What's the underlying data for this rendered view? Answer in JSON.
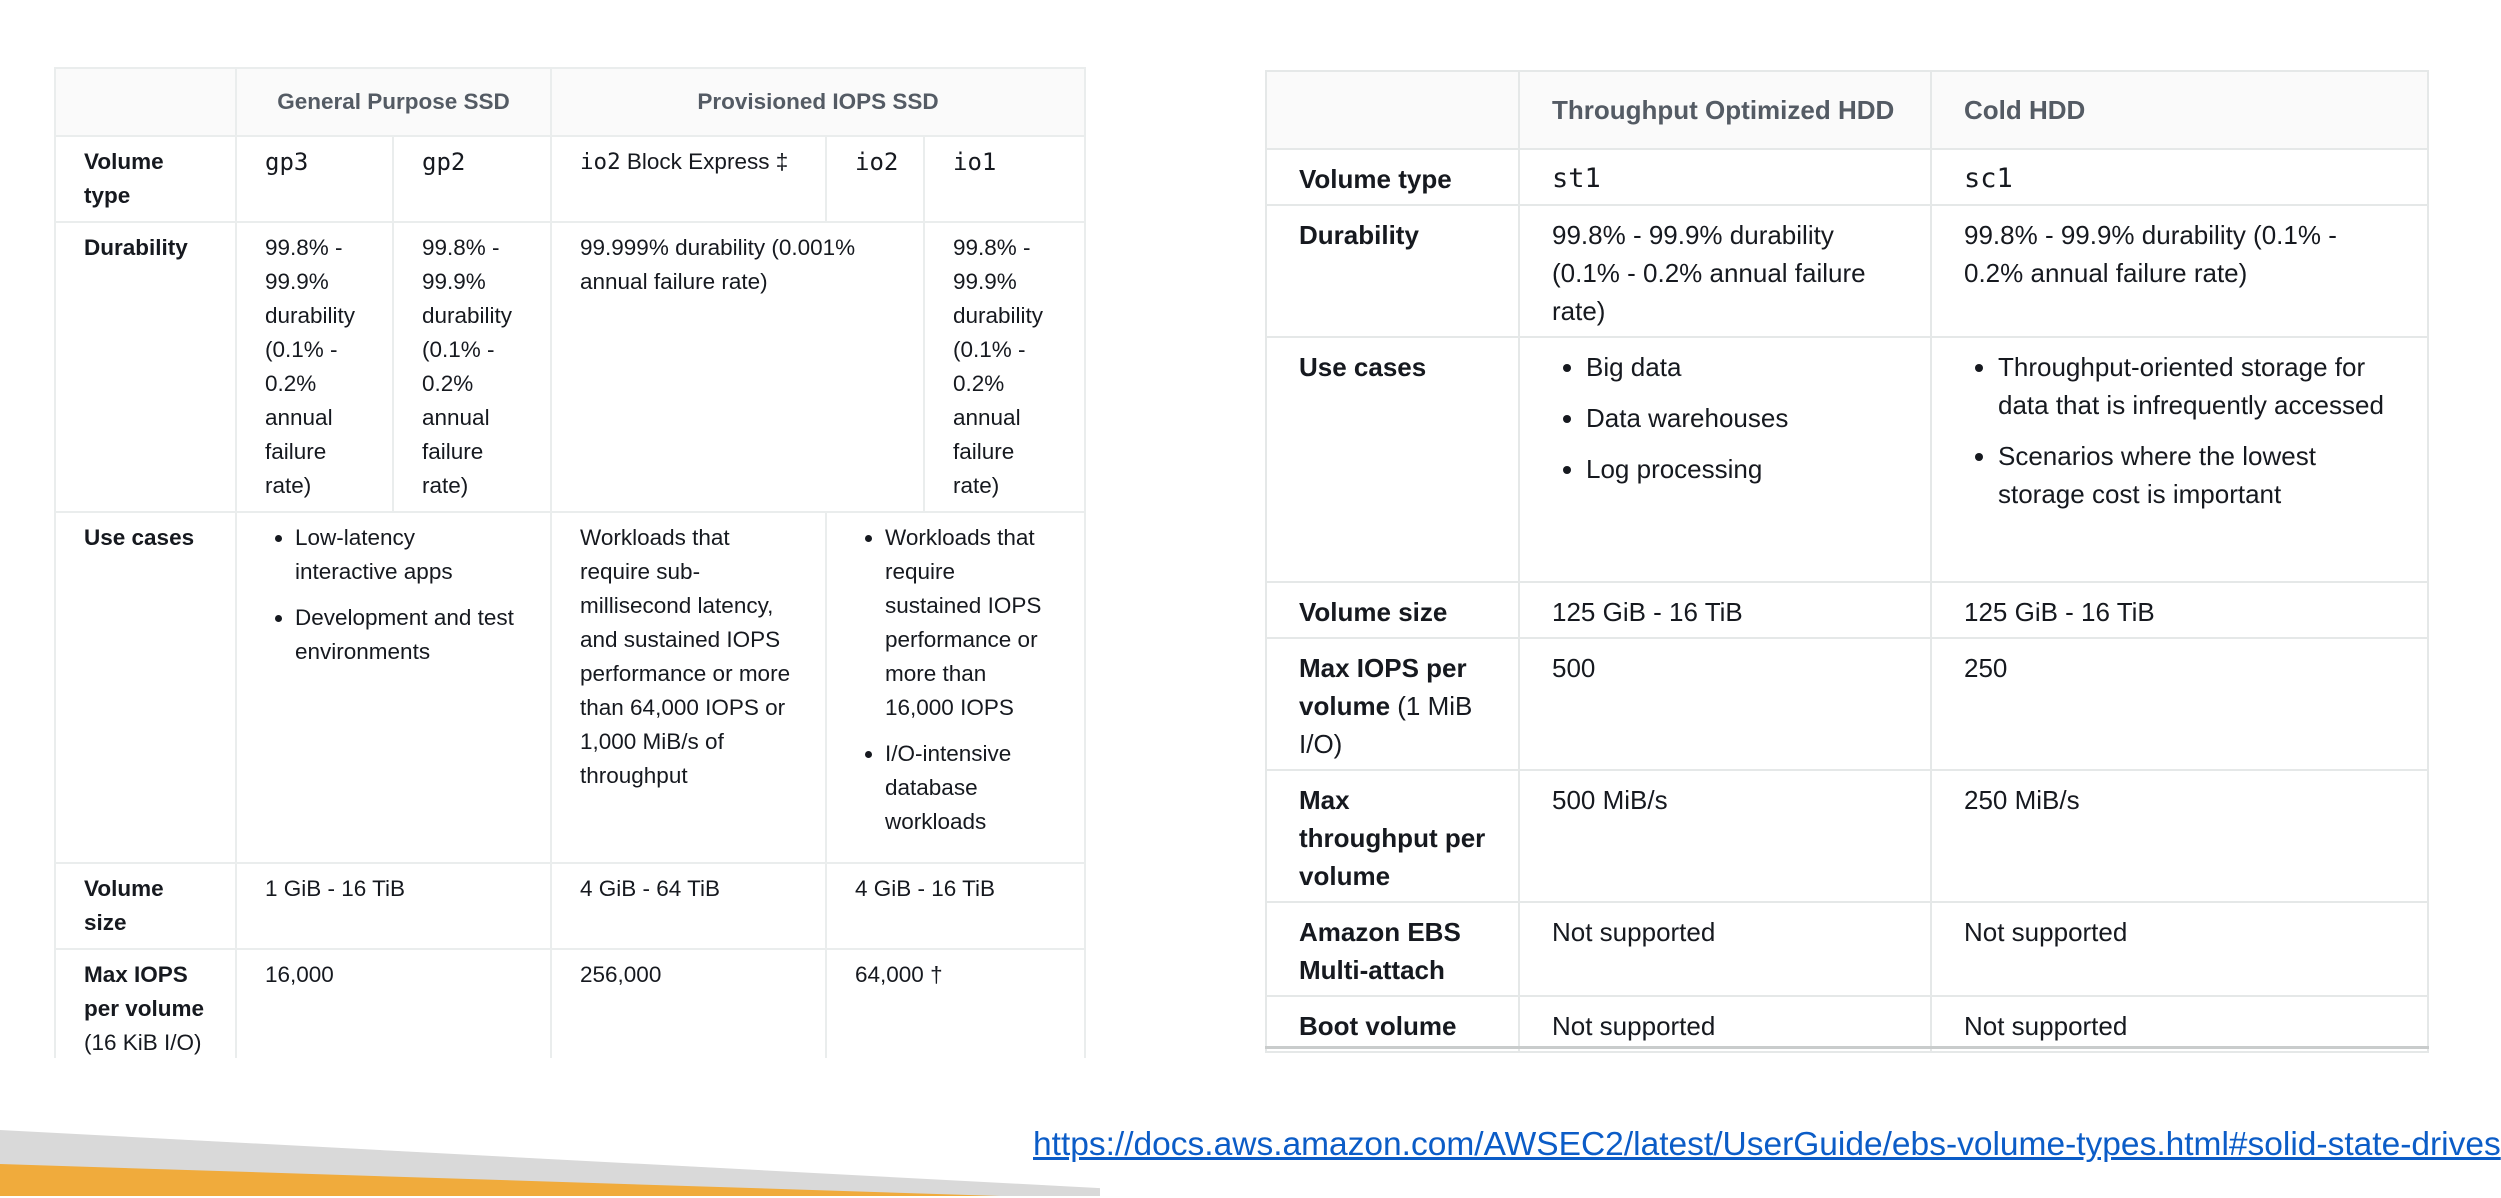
{
  "ssd_table": {
    "headers": {
      "corner": "",
      "general_purpose": "General Purpose SSD",
      "provisioned_iops": "Provisioned IOPS SSD"
    },
    "row_labels": {
      "volume_type": "Volume type",
      "durability": "Durability",
      "use_cases": "Use cases",
      "volume_size": "Volume size",
      "max_iops_bold": "Max IOPS per volume",
      "max_iops_rest": "(16 KiB I/O)"
    },
    "volume_types": {
      "gp3": "gp3",
      "gp2": "gp2",
      "io2_block_express": "io2",
      "io2_block_express_suffix": "Block Express ‡",
      "io2": "io2",
      "io1": "io1"
    },
    "durability": {
      "gp3": "99.8% - 99.9% durability (0.1% - 0.2% annual failure rate)",
      "gp2": "99.8% - 99.9% durability (0.1% - 0.2% annual failure rate)",
      "io2_block_express": "99.999% durability (0.001% annual failure rate)",
      "io1": "99.8% - 99.9% durability (0.1% - 0.2% annual failure rate)"
    },
    "use_cases": {
      "general_purpose": [
        "Low-latency interactive apps",
        "Development and test environments"
      ],
      "io2_block_express": "Workloads that require sub-millisecond latency, and sustained IOPS performance or more than 64,000 IOPS or 1,000 MiB/s of throughput",
      "io2_io1": [
        "Workloads that require sustained IOPS performance or more than 16,000 IOPS",
        "I/O-intensive database workloads"
      ]
    },
    "volume_size": {
      "general_purpose": "1 GiB - 16 TiB",
      "io2_block_express": "4 GiB - 64 TiB",
      "io2_io1": "4 GiB - 16 TiB"
    },
    "max_iops": {
      "general_purpose": "16,000",
      "io2_block_express": "256,000",
      "io2_io1": "64,000 †"
    }
  },
  "hdd_table": {
    "headers": {
      "corner": "",
      "throughput_optimized": "Throughput Optimized HDD",
      "cold": "Cold HDD"
    },
    "row_labels": {
      "volume_type": "Volume type",
      "durability": "Durability",
      "use_cases": "Use cases",
      "volume_size": "Volume size",
      "max_iops_bold": "Max IOPS per volume",
      "max_iops_rest": "(1 MiB I/O)",
      "max_throughput": "Max throughput per volume",
      "multi_attach": "Amazon EBS Multi-attach",
      "boot_volume": "Boot volume"
    },
    "st1": {
      "volume_type": "st1",
      "durability": "99.8% - 99.9% durability (0.1% - 0.2% annual failure rate)",
      "use_cases": [
        "Big data",
        "Data warehouses",
        "Log processing"
      ],
      "volume_size": "125 GiB - 16 TiB",
      "max_iops": "500",
      "max_throughput": "500 MiB/s",
      "multi_attach": "Not supported",
      "boot_volume": "Not supported"
    },
    "sc1": {
      "volume_type": "sc1",
      "durability": "99.8% - 99.9% durability (0.1% - 0.2% annual failure rate)",
      "use_cases": [
        "Throughput-oriented storage for data that is infrequently accessed",
        "Scenarios where the lowest storage cost is important"
      ],
      "volume_size": "125 GiB - 16 TiB",
      "max_iops": "250",
      "max_throughput": "250 MiB/s",
      "multi_attach": "Not supported",
      "boot_volume": "Not supported"
    }
  },
  "link": {
    "text": "https://docs.aws.amazon.com/AWSEC2/latest/UserGuide/ebs-volume-types.html#solid-state-drives"
  },
  "colors": {
    "link": "#0b5cc7",
    "header_text": "#545b64",
    "header_bg": "#fafafa",
    "border": "#eaeded",
    "band_orange": "#f0ab3c",
    "band_gray": "#d9d9d9"
  }
}
